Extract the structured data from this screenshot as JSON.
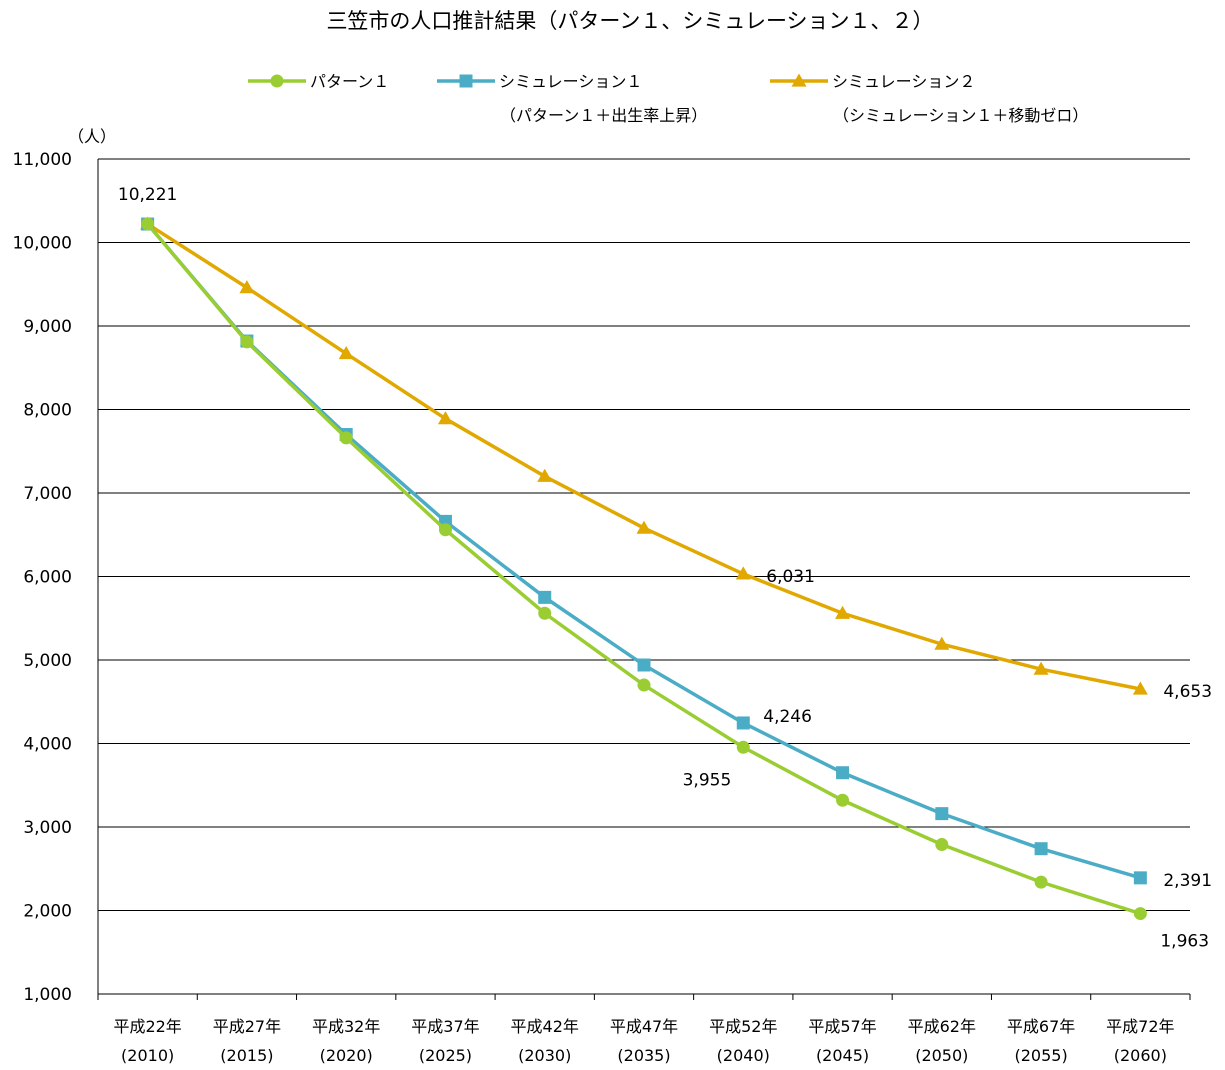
{
  "chart_data": {
    "type": "line",
    "title": "三笠市の人口推計結果（パターン１、シミュレーション１、２）",
    "yunit": "（人）",
    "ylim": [
      1000,
      11000
    ],
    "yticks": [
      1000,
      2000,
      3000,
      4000,
      5000,
      6000,
      7000,
      8000,
      9000,
      10000,
      11000
    ],
    "ytick_labels": [
      "1,000",
      "2,000",
      "3,000",
      "4,000",
      "5,000",
      "6,000",
      "7,000",
      "8,000",
      "9,000",
      "10,000",
      "11,000"
    ],
    "grid": true,
    "legend_position": "top",
    "categories": [
      {
        "era": "平成22年",
        "year": "(2010)"
      },
      {
        "era": "平成27年",
        "year": "(2015)"
      },
      {
        "era": "平成32年",
        "year": "(2020)"
      },
      {
        "era": "平成37年",
        "year": "(2025)"
      },
      {
        "era": "平成42年",
        "year": "(2030)"
      },
      {
        "era": "平成47年",
        "year": "(2035)"
      },
      {
        "era": "平成52年",
        "year": "(2040)"
      },
      {
        "era": "平成57年",
        "year": "(2045)"
      },
      {
        "era": "平成62年",
        "year": "(2050)"
      },
      {
        "era": "平成67年",
        "year": "(2055)"
      },
      {
        "era": "平成72年",
        "year": "(2060)"
      }
    ],
    "series": [
      {
        "name": "パターン１",
        "subtitle": "",
        "color": "#9ACD32",
        "marker": "circle",
        "values": [
          10221,
          8810,
          7660,
          6560,
          5560,
          4700,
          3955,
          3320,
          2790,
          2340,
          1963
        ]
      },
      {
        "name": "シミュレーション１",
        "subtitle": "（パターン１＋出生率上昇）",
        "color": "#4BACC6",
        "marker": "square",
        "values": [
          10221,
          8820,
          7700,
          6660,
          5750,
          4940,
          4246,
          3650,
          3160,
          2740,
          2391
        ]
      },
      {
        "name": "シミュレーション２",
        "subtitle": "（シミュレーション１＋移動ゼロ）",
        "color": "#E0A800",
        "marker": "triangle",
        "values": [
          10221,
          9460,
          8670,
          7890,
          7200,
          6580,
          6031,
          5560,
          5190,
          4890,
          4653
        ]
      }
    ],
    "data_labels": [
      {
        "series": 0,
        "index": 6,
        "text": "3,955"
      },
      {
        "series": 0,
        "index": 10,
        "text": "1,963"
      },
      {
        "series": 1,
        "index": 6,
        "text": "4,246"
      },
      {
        "series": 1,
        "index": 10,
        "text": "2,391"
      },
      {
        "series": 2,
        "index": 0,
        "text": "10,221"
      },
      {
        "series": 2,
        "index": 6,
        "text": "6,031"
      },
      {
        "series": 2,
        "index": 10,
        "text": "4,653"
      }
    ]
  }
}
